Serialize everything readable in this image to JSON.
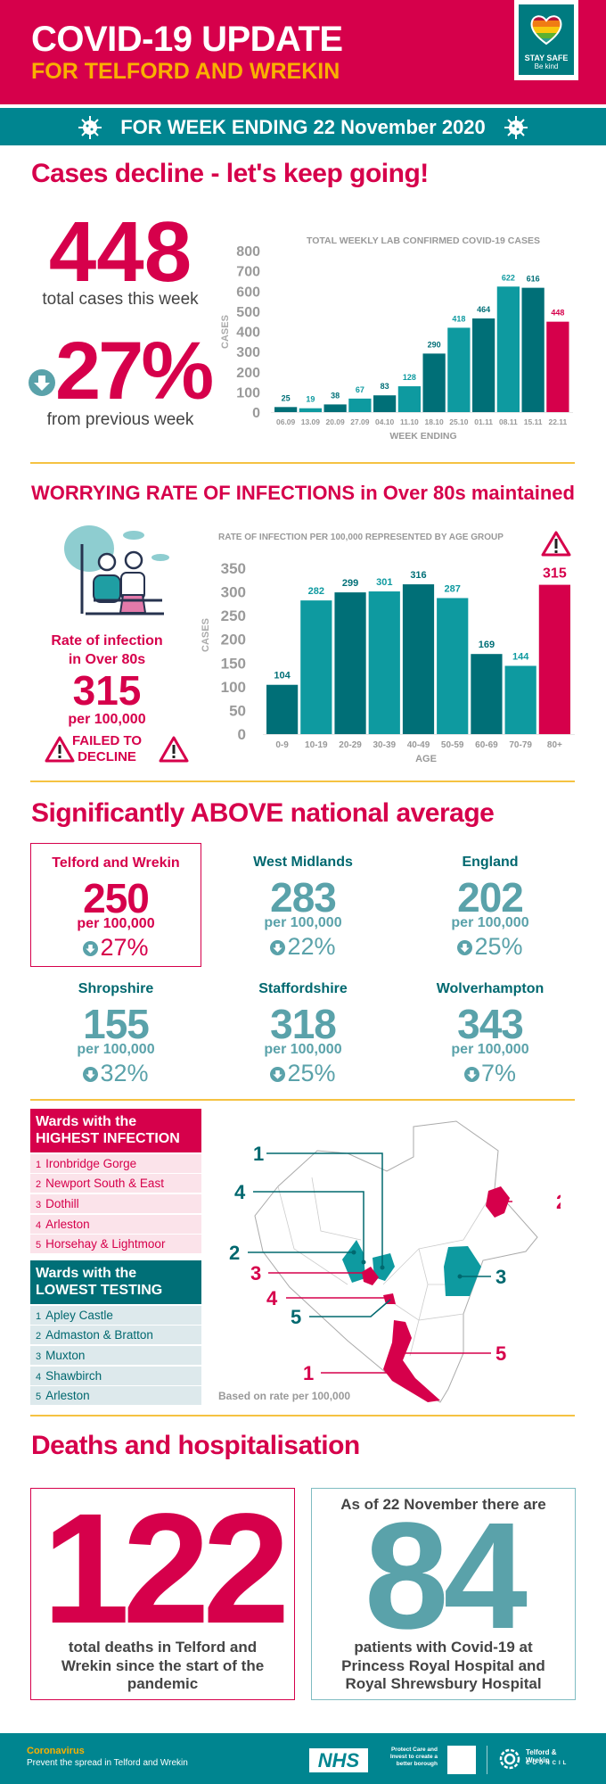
{
  "header": {
    "title": "COVID-19 UPDATE",
    "subtitle": "FOR TELFORD AND WREKIN",
    "logo_line1": "STAY SAFE",
    "logo_line2": "Be kind",
    "week_banner": "FOR WEEK ENDING 22 November 2020"
  },
  "colors": {
    "crimson": "#d6004b",
    "teal_dark": "#006f77",
    "teal_light": "#0e9aa0",
    "teal_text": "#5aa2aa",
    "yellow": "#f9b000",
    "banner": "#008590"
  },
  "cases": {
    "heading": "Cases decline - let's keep going!",
    "total": "448",
    "total_label": "total cases this week",
    "change": "27%",
    "change_label": "from previous week",
    "change_icon": "down-arrow-circle-icon"
  },
  "chart_data": [
    {
      "type": "bar",
      "title": "TOTAL WEEKLY LAB CONFIRMED COVID-19 CASES",
      "xlabel": "WEEK ENDING",
      "ylabel": "CASES",
      "ylim": [
        0,
        800
      ],
      "yticks": [
        0,
        100,
        200,
        300,
        400,
        500,
        600,
        700,
        800
      ],
      "grid": false,
      "categories": [
        "06.09",
        "13.09",
        "20.09",
        "27.09",
        "04.10",
        "11.10",
        "18.10",
        "25.10",
        "01.11",
        "08.11",
        "15.11",
        "22.11"
      ],
      "values": [
        25,
        19,
        38,
        67,
        83,
        128,
        290,
        418,
        464,
        622,
        616,
        448
      ],
      "bar_colors": [
        "#006f77",
        "#0e9aa0",
        "#006f77",
        "#0e9aa0",
        "#006f77",
        "#0e9aa0",
        "#006f77",
        "#0e9aa0",
        "#006f77",
        "#0e9aa0",
        "#006f77",
        "#d6004b"
      ]
    },
    {
      "type": "bar",
      "title": "RATE OF INFECTION PER 100,000 REPRESENTED BY AGE GROUP",
      "xlabel": "AGE",
      "ylabel": "CASES",
      "ylim": [
        0,
        350
      ],
      "yticks": [
        0,
        50,
        100,
        150,
        200,
        250,
        300,
        350
      ],
      "grid": false,
      "categories": [
        "0-9",
        "10-19",
        "20-29",
        "30-39",
        "40-49",
        "50-59",
        "60-69",
        "70-79",
        "80+"
      ],
      "values": [
        104,
        282,
        299,
        301,
        316,
        287,
        169,
        144,
        315
      ],
      "bar_colors": [
        "#006f77",
        "#0e9aa0",
        "#006f77",
        "#0e9aa0",
        "#006f77",
        "#0e9aa0",
        "#006f77",
        "#0e9aa0",
        "#d6004b"
      ]
    }
  ],
  "over80": {
    "heading": "WORRYING RATE OF INFECTIONS in Over 80s maintained",
    "label_line1": "Rate of infection",
    "label_line2": "in Over 80s",
    "value": "315",
    "per": "per 100,000",
    "warning_line1": "FAILED TO",
    "warning_line2": "DECLINE"
  },
  "comparison": {
    "heading": "Significantly ABOVE national average",
    "regions": [
      {
        "name": "Telford and Wrekin",
        "rate": "250",
        "per": "per 100,000",
        "change": "27%"
      },
      {
        "name": "West Midlands",
        "rate": "283",
        "per": "per 100,000",
        "change": "22%"
      },
      {
        "name": "England",
        "rate": "202",
        "per": "per 100,000",
        "change": "25%"
      },
      {
        "name": "Shropshire",
        "rate": "155",
        "per": "per 100,000",
        "change": "32%"
      },
      {
        "name": "Staffordshire",
        "rate": "318",
        "per": "per 100,000",
        "change": "25%"
      },
      {
        "name": "Wolverhampton",
        "rate": "343",
        "per": "per 100,000",
        "change": "7%"
      }
    ]
  },
  "wards": {
    "highest": {
      "title_line1": "Wards with the",
      "title_line2": "HIGHEST INFECTION",
      "items": [
        {
          "num": "1",
          "name": "Ironbridge Gorge"
        },
        {
          "num": "2",
          "name": "Newport South & East"
        },
        {
          "num": "3",
          "name": "Dothill"
        },
        {
          "num": "4",
          "name": "Arleston"
        },
        {
          "num": "5",
          "name": "Horsehay & Lightmoor"
        }
      ]
    },
    "lowest": {
      "title_line1": "Wards with the",
      "title_line2": "LOWEST TESTING",
      "items": [
        {
          "num": "1",
          "name": "Apley Castle"
        },
        {
          "num": "2",
          "name": "Admaston & Bratton"
        },
        {
          "num": "3",
          "name": "Muxton"
        },
        {
          "num": "4",
          "name": "Shawbirch"
        },
        {
          "num": "5",
          "name": "Arleston"
        }
      ]
    },
    "map_note": "Based on rate per 100,000"
  },
  "deaths": {
    "heading": "Deaths and hospitalisation",
    "total": "122",
    "total_text": "total deaths in Telford and Wrekin since the start of the pandemic",
    "hosp_intro": "As of 22 November there are",
    "hosp_value": "84",
    "hosp_text": "patients with Covid-19 at Princess Royal Hospital and Royal Shrewsbury Hospital"
  },
  "footer": {
    "line1": "Coronavirus",
    "line2": "Prevent the spread in Telford and Wrekin",
    "nhs": "NHS",
    "protect": "Protect Care and Invest to create a better borough",
    "council_name": "Telford & Wrekin",
    "council_word": "COUNCIL"
  }
}
